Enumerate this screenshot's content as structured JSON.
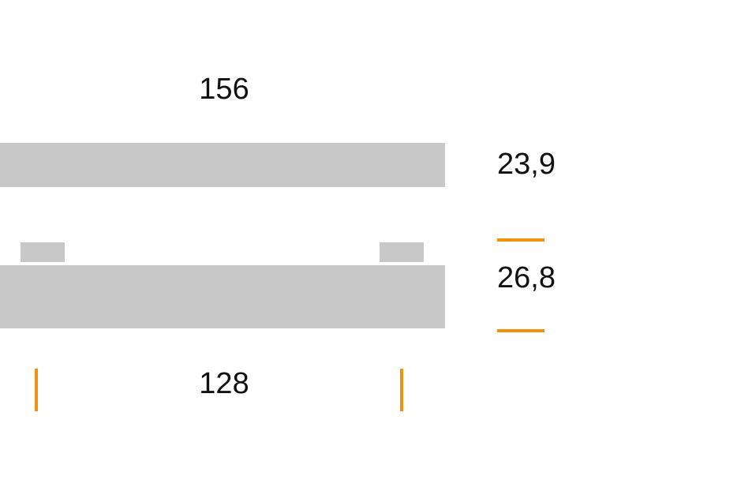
{
  "colors": {
    "part": "#c8c8c8",
    "dimension_marker": "#f0900f"
  },
  "labels": {
    "top_width": "156",
    "top_height": "23,9",
    "bottom_height": "26,8",
    "hole_spacing": "128"
  }
}
